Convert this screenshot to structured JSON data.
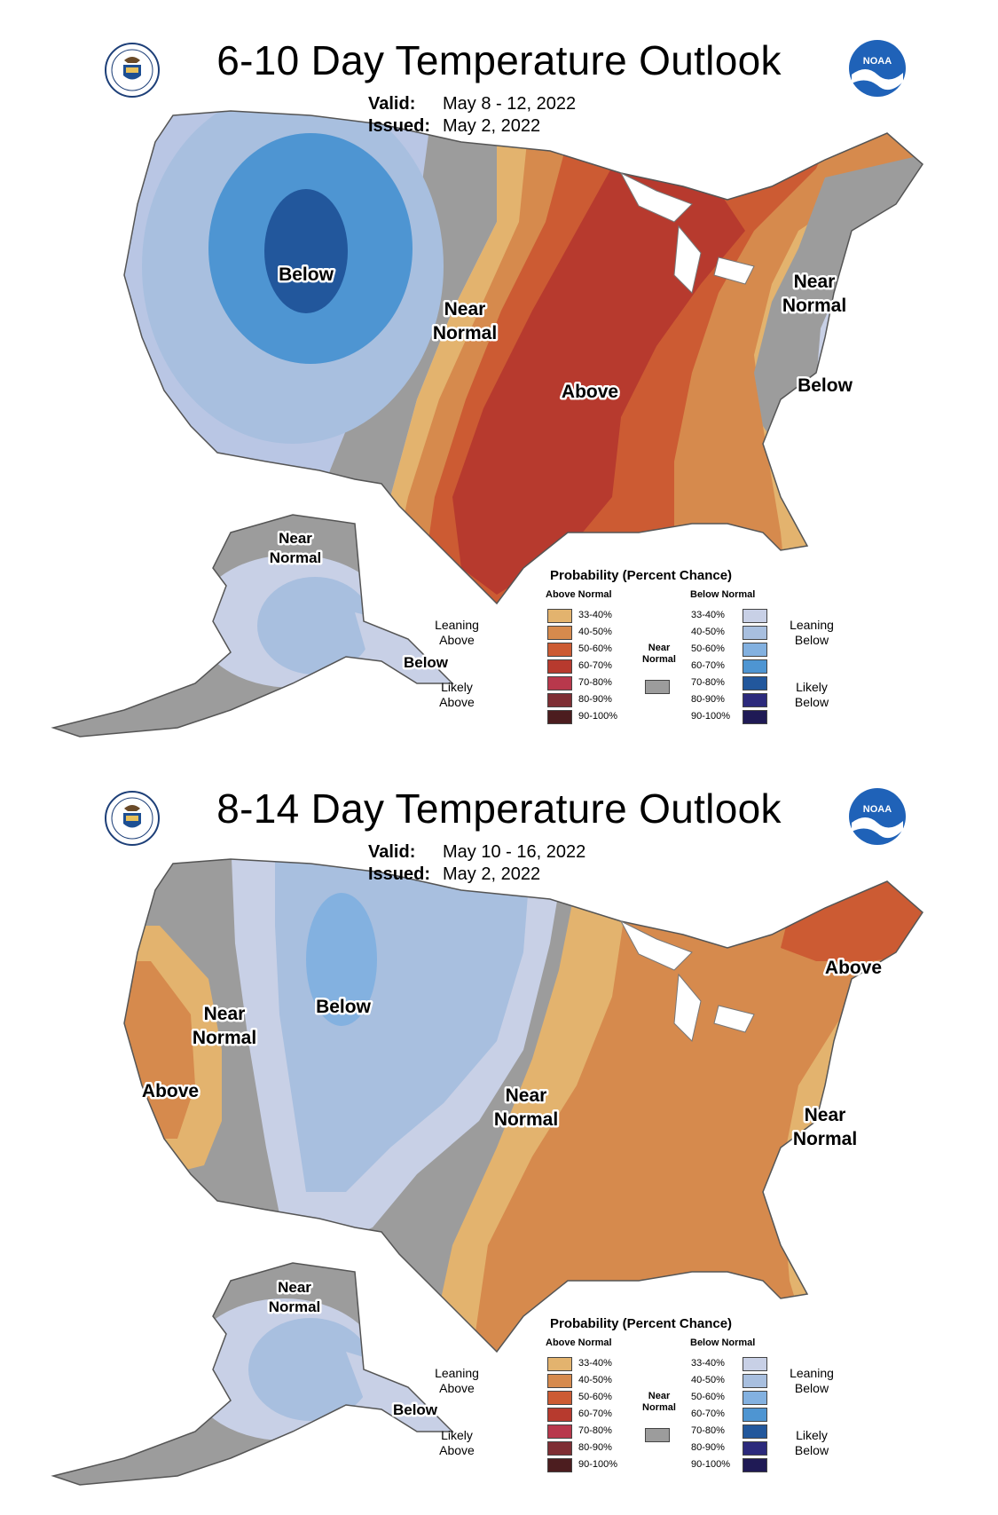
{
  "colors": {
    "above_33_40": "#e3b36e",
    "above_40_50": "#d68a4d",
    "above_50_60": "#cc5b33",
    "above_60_70": "#b73a2e",
    "above_70_80": "#b8384c",
    "above_80_90": "#7e2e34",
    "above_90_100": "#4c1d1f",
    "near_normal": "#9c9c9c",
    "below_33_40": "#c8d0e6",
    "below_40_50": "#a8bfdf",
    "below_50_60": "#83b1e0",
    "below_60_70": "#4e95d2",
    "below_70_80": "#22579c",
    "below_80_90": "#2c2a7c",
    "below_90_100": "#1f1a55"
  },
  "icons": {
    "seal": "dept-of-commerce-seal-icon",
    "noaa": "noaa-logo-icon"
  },
  "panels": [
    {
      "title": "6-10 Day Temperature Outlook",
      "valid_label": "Valid:",
      "valid": "May 8 - 12, 2022",
      "issued_label": "Issued:",
      "issued": "May 2, 2022",
      "map_labels": [
        "Below",
        "Near\nNormal",
        "Above",
        "Near\nNormal",
        "Below"
      ],
      "alaska_labels": [
        "Near\nNormal",
        "Below"
      ]
    },
    {
      "title": "8-14 Day Temperature Outlook",
      "valid_label": "Valid:",
      "valid": "May 10 - 16, 2022",
      "issued_label": "Issued:",
      "issued": "May 2, 2022",
      "map_labels": [
        "Below",
        "Near\nNormal",
        "Above",
        "Near\nNormal",
        "Above",
        "Near\nNormal"
      ],
      "alaska_labels": [
        "Near\nNormal",
        "Below"
      ]
    }
  ],
  "legend": {
    "title": "Probability (Percent Chance)",
    "above_header": "Above Normal",
    "below_header": "Below Normal",
    "near_label": "Near\nNormal",
    "ranges": [
      "33-40%",
      "40-50%",
      "50-60%",
      "60-70%",
      "70-80%",
      "80-90%",
      "90-100%"
    ],
    "leaning_above": "Leaning\nAbove",
    "likely_above": "Likely\nAbove",
    "leaning_below": "Leaning\nBelow",
    "likely_below": "Likely\nBelow"
  }
}
